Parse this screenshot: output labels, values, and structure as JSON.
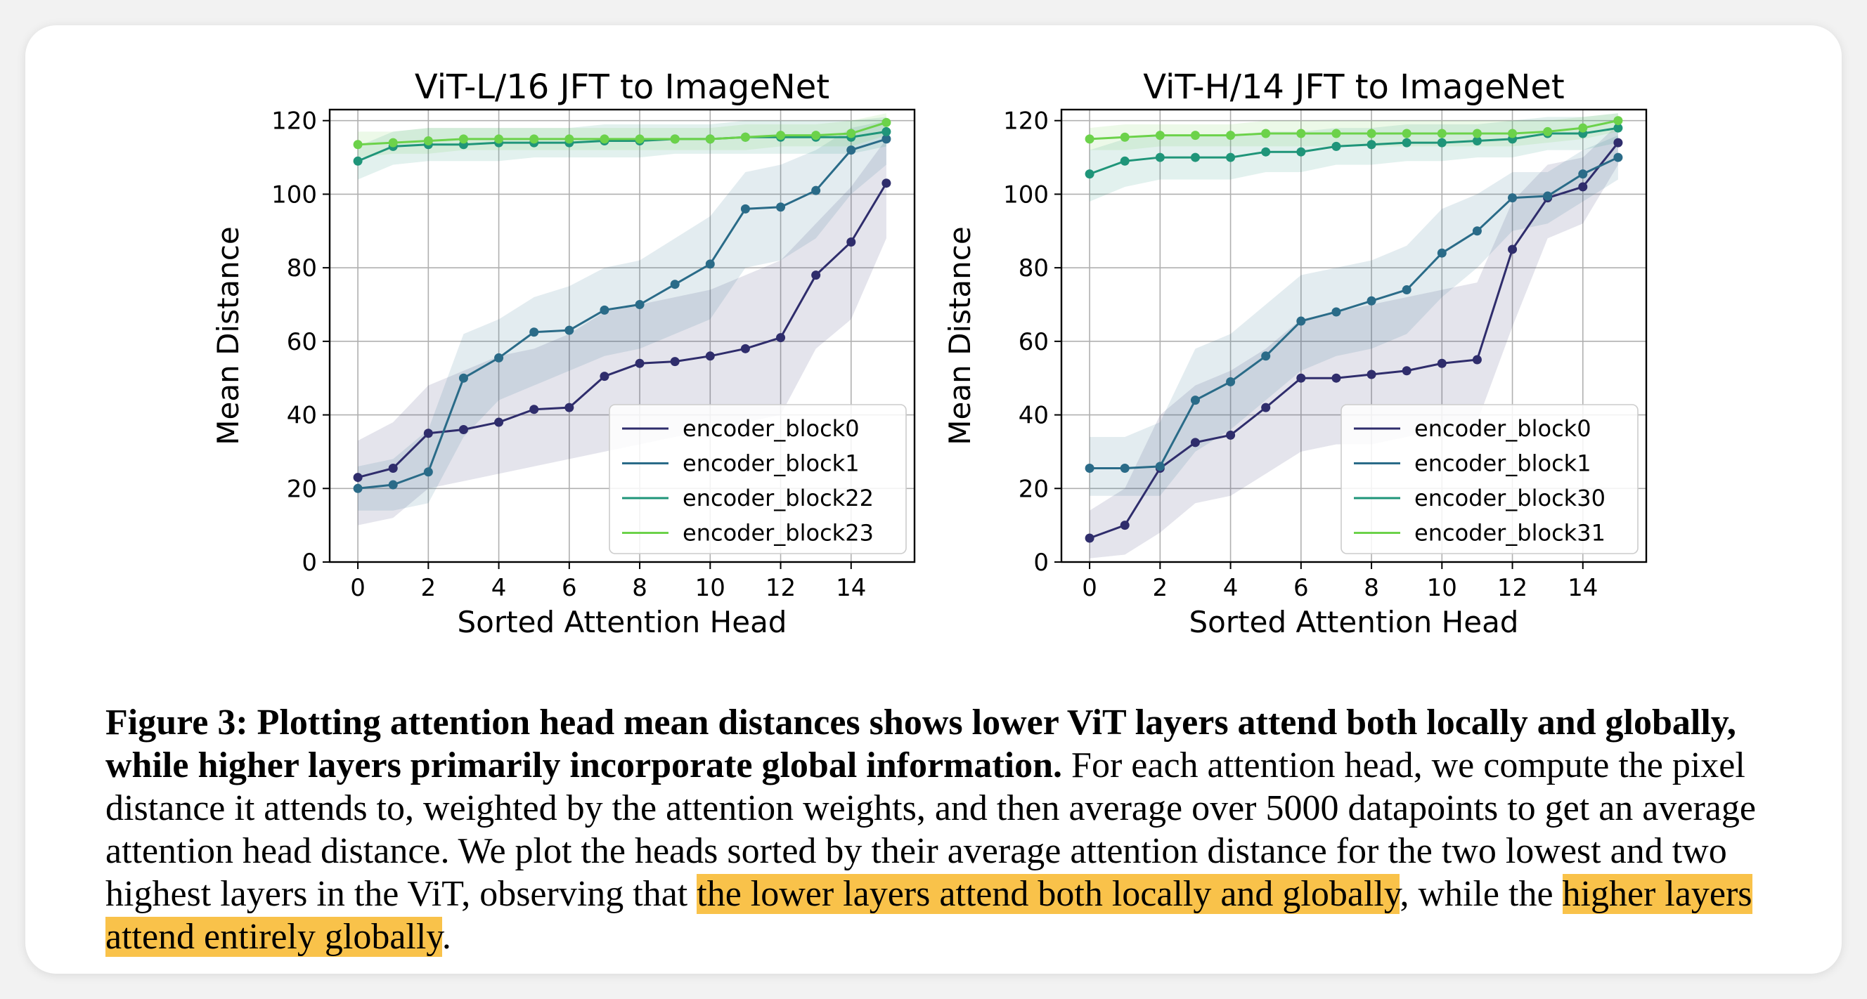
{
  "figure": {
    "caption_label": "Figure 3:",
    "caption_bold": "Plotting attention head mean distances shows lower ViT layers attend both locally and globally, while higher layers primarily incorporate global information.",
    "caption_text_1": "For each attention head, we compute the pixel distance it attends to, weighted by the attention weights, and then average over 5000 datapoints to get an average attention head distance. We plot the heads sorted by their average attention distance for the two lowest and two highest layers in the ViT, observing that",
    "caption_highlight_1": "the lower layers attend both locally and globally",
    "caption_text_2": ", while the",
    "caption_highlight_2": "higher layers attend entirely globally",
    "caption_text_3": ".",
    "highlight_color": "#f9c24a"
  },
  "chart_data": [
    {
      "type": "line",
      "title": "ViT-L/16 JFT to ImageNet",
      "xlabel": "Sorted Attention Head",
      "ylabel": "Mean Distance",
      "xlim": [
        -0.8,
        15.8
      ],
      "ylim": [
        0,
        123
      ],
      "xticks": [
        0,
        2,
        4,
        6,
        8,
        10,
        12,
        14
      ],
      "yticks": [
        0,
        20,
        40,
        60,
        80,
        100,
        120
      ],
      "grid": true,
      "legend_position": "lower-right",
      "x": [
        0,
        1,
        2,
        3,
        4,
        5,
        6,
        7,
        8,
        9,
        10,
        11,
        12,
        13,
        14,
        15
      ],
      "series": [
        {
          "name": "encoder_block0",
          "color": "#2f2d6c",
          "values": [
            23,
            25.5,
            35,
            36,
            38,
            41.5,
            42,
            50.5,
            54,
            54.5,
            56,
            58,
            61,
            78,
            87,
            103
          ],
          "lower": [
            10,
            12,
            20,
            22,
            24,
            26,
            28,
            30,
            32,
            34,
            36,
            38,
            40,
            58,
            66,
            88
          ],
          "upper": [
            33,
            38,
            48,
            52,
            56,
            58,
            62,
            68,
            70,
            72,
            74,
            78,
            82,
            92,
            102,
            115
          ]
        },
        {
          "name": "encoder_block1",
          "color": "#2a6b88",
          "values": [
            20,
            21,
            24.5,
            50,
            55.5,
            62.5,
            63,
            68.5,
            70,
            75.5,
            81,
            96,
            96.5,
            101,
            112,
            115
          ],
          "lower": [
            14,
            14,
            16,
            34,
            44,
            48,
            52,
            56,
            58,
            62,
            66,
            80,
            82,
            88,
            100,
            108
          ],
          "upper": [
            26,
            28,
            36,
            62,
            66,
            72,
            75,
            80,
            82,
            88,
            94,
            106,
            108,
            112,
            118,
            120
          ]
        },
        {
          "name": "encoder_block22",
          "color": "#1f9579",
          "values": [
            109,
            113,
            113.5,
            113.5,
            114,
            114,
            114,
            114.5,
            114.5,
            115,
            115,
            115.5,
            115.5,
            115.5,
            115.5,
            117
          ],
          "lower": [
            104,
            108,
            109,
            109,
            109,
            110,
            110,
            110,
            110,
            111,
            111,
            111,
            111,
            111,
            111,
            113
          ],
          "upper": [
            113,
            117,
            118,
            118,
            118,
            118,
            118,
            119,
            119,
            119,
            119,
            120,
            120,
            120,
            120,
            121
          ]
        },
        {
          "name": "encoder_block23",
          "color": "#6cd24a",
          "values": [
            113.5,
            114,
            114.5,
            115,
            115,
            115,
            115,
            115,
            115,
            115,
            115,
            115.5,
            116,
            116,
            116.5,
            119.5
          ],
          "lower": [
            110,
            111,
            111,
            112,
            112,
            112,
            112,
            112,
            112,
            112,
            112,
            112,
            113,
            113,
            113,
            116
          ],
          "upper": [
            117,
            117,
            118,
            118,
            118,
            118,
            118,
            118,
            118,
            118,
            118,
            119,
            119,
            119,
            120,
            122
          ]
        }
      ]
    },
    {
      "type": "line",
      "title": "ViT-H/14 JFT to ImageNet",
      "xlabel": "Sorted Attention Head",
      "ylabel": "Mean Distance",
      "xlim": [
        -0.8,
        15.8
      ],
      "ylim": [
        0,
        123
      ],
      "xticks": [
        0,
        2,
        4,
        6,
        8,
        10,
        12,
        14
      ],
      "yticks": [
        0,
        20,
        40,
        60,
        80,
        100,
        120
      ],
      "grid": true,
      "legend_position": "lower-right",
      "x": [
        0,
        1,
        2,
        3,
        4,
        5,
        6,
        7,
        8,
        9,
        10,
        11,
        12,
        13,
        14,
        15
      ],
      "series": [
        {
          "name": "encoder_block0",
          "color": "#2f2d6c",
          "values": [
            6.5,
            10,
            25.5,
            32.5,
            34.5,
            42,
            50,
            50,
            51,
            52,
            54,
            55,
            85,
            99,
            102,
            114
          ],
          "lower": [
            1,
            2,
            8,
            16,
            18,
            24,
            30,
            32,
            32,
            34,
            36,
            38,
            64,
            88,
            92,
            108
          ],
          "upper": [
            14,
            20,
            40,
            48,
            52,
            58,
            66,
            68,
            70,
            72,
            74,
            76,
            98,
            108,
            110,
            119
          ]
        },
        {
          "name": "encoder_block1",
          "color": "#2a6b88",
          "values": [
            25.5,
            25.5,
            26,
            44,
            49,
            56,
            65.5,
            68,
            71,
            74,
            84,
            90,
            99,
            99.5,
            105.5,
            110
          ],
          "lower": [
            18,
            18,
            18,
            30,
            36,
            44,
            52,
            56,
            58,
            62,
            72,
            80,
            90,
            92,
            98,
            104
          ],
          "upper": [
            34,
            34,
            38,
            58,
            62,
            70,
            78,
            80,
            82,
            86,
            96,
            100,
            106,
            106,
            112,
            116
          ]
        },
        {
          "name": "encoder_block30",
          "color": "#1f9579",
          "values": [
            105.5,
            109,
            110,
            110,
            110,
            111.5,
            111.5,
            113,
            113.5,
            114,
            114,
            114.5,
            115,
            116.5,
            116.5,
            118
          ],
          "lower": [
            98,
            102,
            104,
            104,
            104,
            106,
            106,
            108,
            108,
            109,
            109,
            110,
            110,
            112,
            112,
            114
          ],
          "upper": [
            112,
            115,
            116,
            116,
            116,
            117,
            117,
            118,
            118,
            119,
            119,
            119,
            120,
            121,
            121,
            122
          ]
        },
        {
          "name": "encoder_block31",
          "color": "#6cd24a",
          "values": [
            115,
            115.5,
            116,
            116,
            116,
            116.5,
            116.5,
            116.5,
            116.5,
            116.5,
            116.5,
            116.5,
            116.5,
            117,
            118,
            120
          ],
          "lower": [
            112,
            112,
            113,
            113,
            113,
            113,
            113,
            113,
            113,
            113,
            113,
            113,
            113,
            114,
            115,
            117
          ],
          "upper": [
            118,
            119,
            119,
            119,
            119,
            120,
            120,
            120,
            120,
            120,
            120,
            120,
            120,
            120,
            121,
            122
          ]
        }
      ]
    }
  ]
}
